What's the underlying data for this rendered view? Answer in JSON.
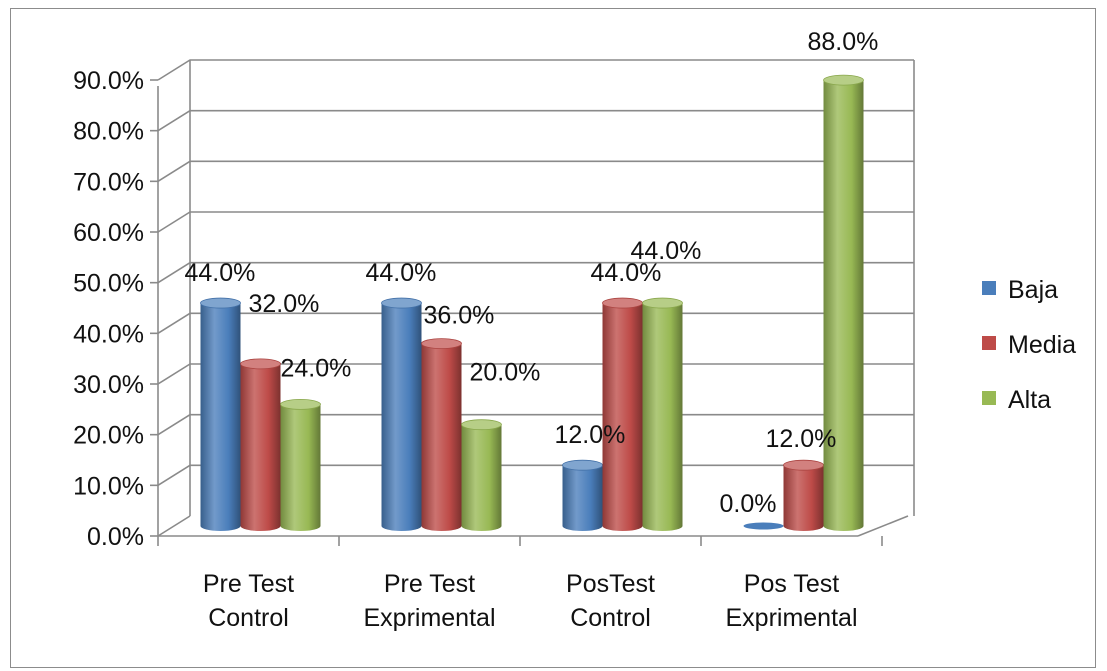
{
  "chart_data": {
    "type": "bar",
    "style": "3d-cylinder",
    "categories": [
      [
        "Pre Test",
        "Control"
      ],
      [
        "Pre Test",
        "Exprimental"
      ],
      [
        "PosTest",
        "Control"
      ],
      [
        "Pos Test",
        "Exprimental"
      ]
    ],
    "series": [
      {
        "name": "Baja",
        "color": "#4a7ebb",
        "values": [
          44.0,
          44.0,
          12.0,
          0.0
        ]
      },
      {
        "name": "Media",
        "color": "#be4b48",
        "values": [
          32.0,
          36.0,
          44.0,
          12.0
        ]
      },
      {
        "name": "Alta",
        "color": "#98b954",
        "values": [
          24.0,
          20.0,
          44.0,
          88.0
        ]
      }
    ],
    "data_labels": [
      [
        "44.0%",
        "44.0%",
        "12.0%",
        "0.0%"
      ],
      [
        "32.0%",
        "36.0%",
        "44.0%",
        "12.0%"
      ],
      [
        "24.0%",
        "20.0%",
        "44.0%",
        "88.0%"
      ]
    ],
    "yticks": [
      "0.0%",
      "10.0%",
      "20.0%",
      "30.0%",
      "40.0%",
      "50.0%",
      "60.0%",
      "70.0%",
      "80.0%",
      "90.0%"
    ],
    "ylim": [
      0,
      90
    ],
    "unit": "%",
    "title": "",
    "xlabel": "",
    "ylabel": "",
    "grid": true,
    "legend_position": "right"
  }
}
